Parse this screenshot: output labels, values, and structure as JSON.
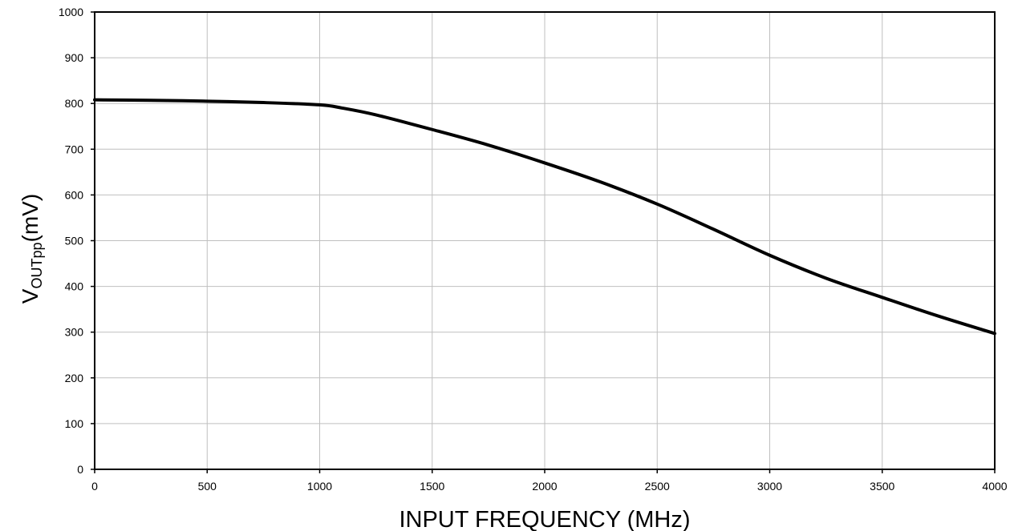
{
  "chart_data": {
    "type": "line",
    "title": "",
    "xlabel": "INPUT FREQUENCY (MHz)",
    "ylabel": {
      "main": "V",
      "subscript": "OUTpp",
      "unit": "(mV)"
    },
    "xlim": [
      0,
      4000
    ],
    "ylim": [
      0,
      1000
    ],
    "xticks": [
      0,
      500,
      1000,
      1500,
      2000,
      2500,
      3000,
      3500,
      4000
    ],
    "yticks": [
      0,
      100,
      200,
      300,
      400,
      500,
      600,
      700,
      800,
      900,
      1000
    ],
    "grid": true,
    "series": [
      {
        "color": "#000000",
        "x": [
          0,
          250,
          500,
          750,
          1000,
          1100,
          1250,
          1500,
          1750,
          2000,
          2250,
          2500,
          2750,
          3000,
          3250,
          3500,
          3750,
          4000
        ],
        "y": [
          808,
          807,
          805,
          802,
          797,
          790,
          775,
          743,
          709,
          670,
          628,
          580,
          525,
          468,
          418,
          376,
          335,
          297
        ]
      }
    ]
  }
}
